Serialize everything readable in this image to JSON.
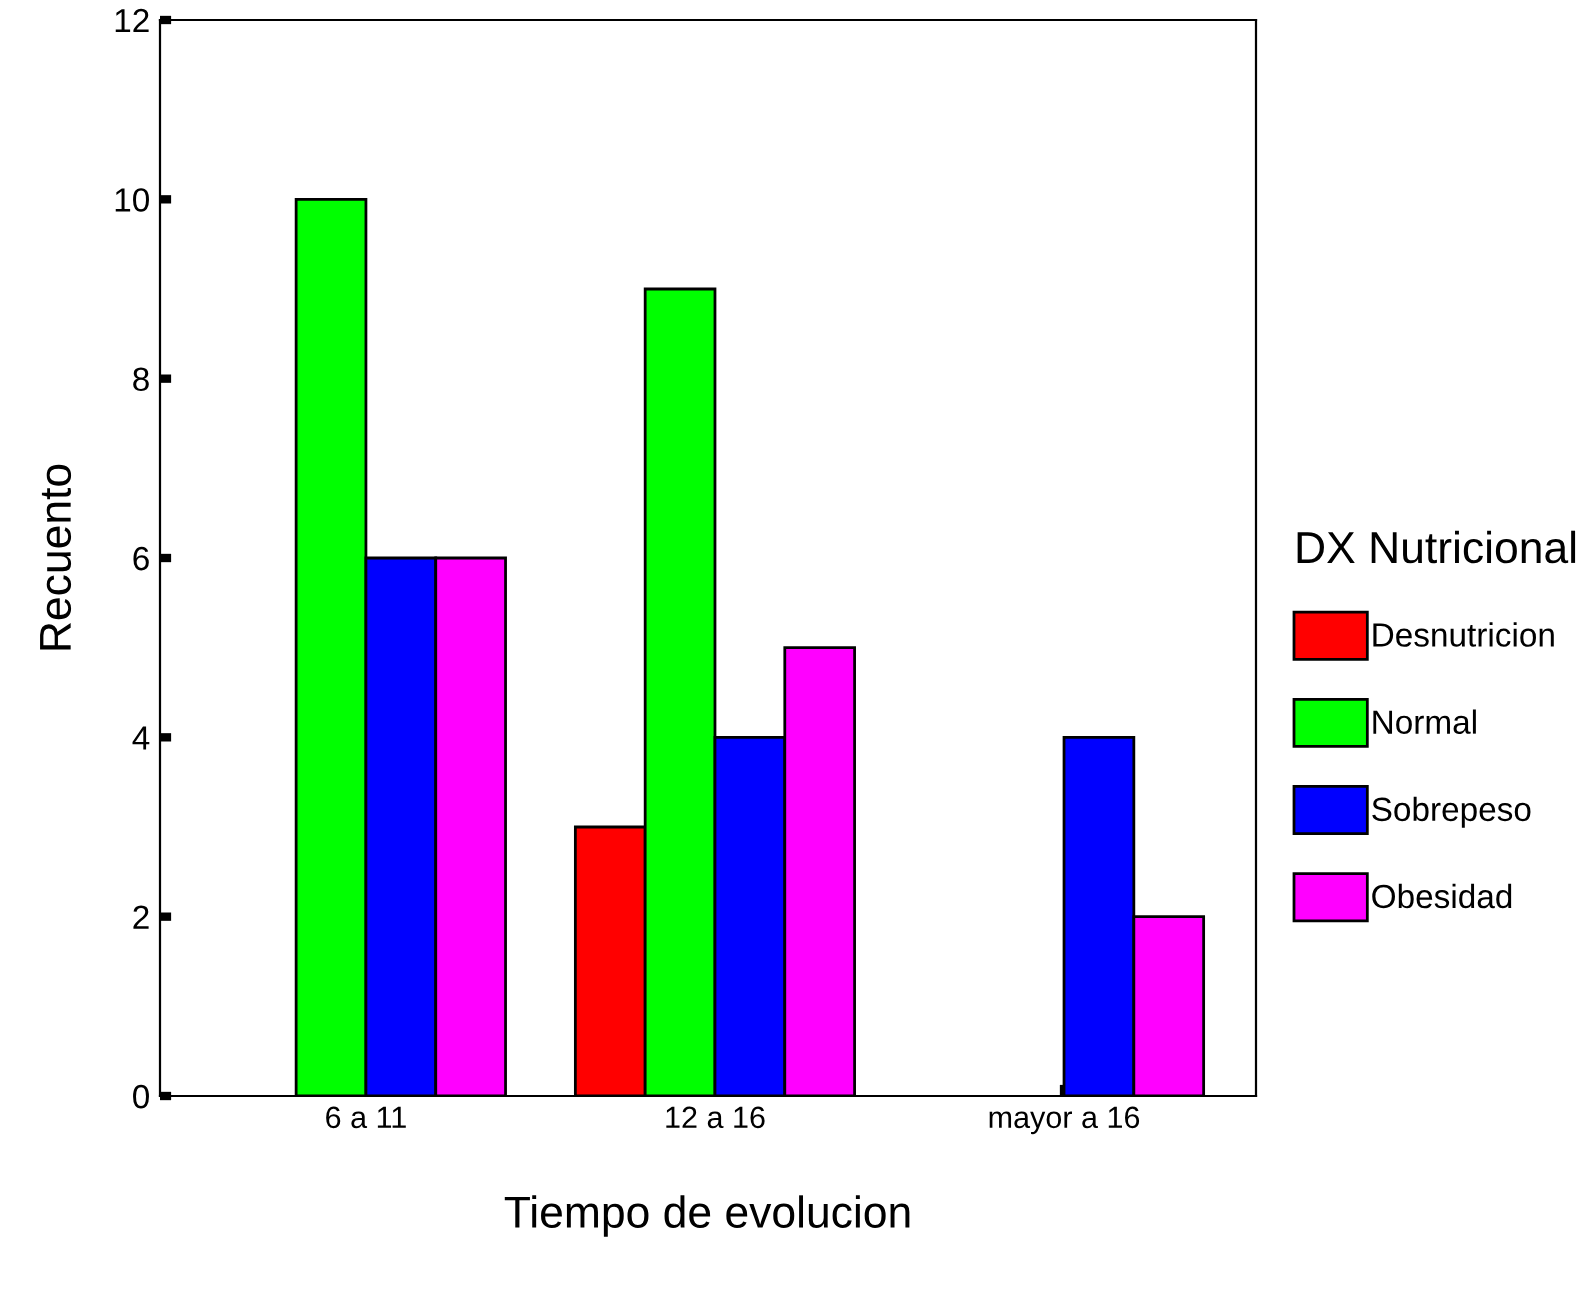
{
  "chart_data": {
    "type": "bar",
    "xlabel": "Tiempo de evolucion",
    "ylabel": "Recuento",
    "legend_title": "DX Nutricional",
    "categories": [
      "6 a 11",
      "12 a 16",
      "mayor a 16"
    ],
    "series": [
      {
        "name": "Desnutricion",
        "color": "#ff0000",
        "values": [
          null,
          3,
          null
        ]
      },
      {
        "name": "Normal",
        "color": "#00ff00",
        "values": [
          10,
          9,
          null
        ]
      },
      {
        "name": "Sobrepeso",
        "color": "#0000ff",
        "values": [
          6,
          4,
          4
        ]
      },
      {
        "name": "Obesidad",
        "color": "#ff00ff",
        "values": [
          6,
          5,
          2
        ]
      }
    ],
    "ylim": [
      0,
      12
    ],
    "yticks": [
      0,
      2,
      4,
      6,
      8,
      10,
      12
    ],
    "grid": false,
    "legend": "right"
  }
}
